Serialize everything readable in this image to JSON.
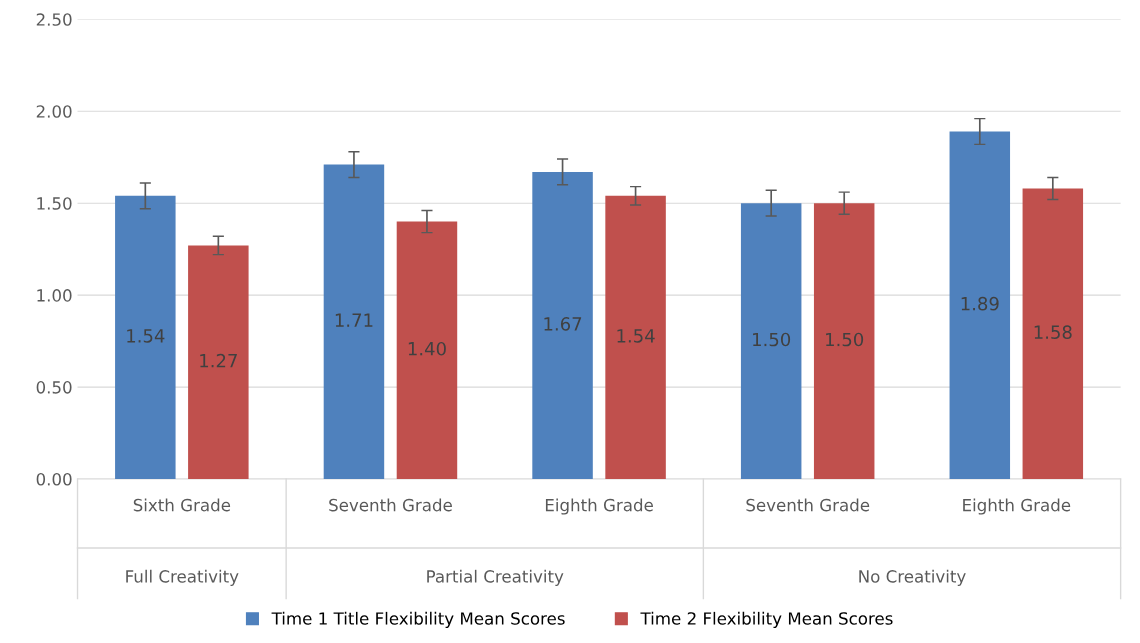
{
  "chart_data": {
    "type": "bar",
    "categories": [
      "Sixth Grade",
      "Seventh Grade",
      "Eighth Grade",
      "Seventh Grade",
      "Eighth Grade"
    ],
    "series": [
      {
        "name": "Time 1 Title Flexibility Mean Scores",
        "color": "#4f81bd",
        "values": [
          1.54,
          1.71,
          1.67,
          1.5,
          1.89
        ],
        "value_labels": [
          "1.54",
          "1.71",
          "1.67",
          "1.50",
          "1.89"
        ],
        "errors": [
          0.07,
          0.07,
          0.07,
          0.07,
          0.07
        ]
      },
      {
        "name": "Time 2 Flexibility Mean Scores",
        "color": "#c0504d",
        "values": [
          1.27,
          1.4,
          1.54,
          1.5,
          1.58
        ],
        "value_labels": [
          "1.27",
          "1.40",
          "1.54",
          "1.50",
          "1.58"
        ],
        "errors": [
          0.05,
          0.06,
          0.05,
          0.06,
          0.06
        ]
      }
    ],
    "annotations": [
      "Full Creativity",
      "Partial Creativity",
      "No Creativity"
    ],
    "ylim": [
      0,
      2.5
    ],
    "yticks": [
      {
        "value": 0,
        "label": "0.00"
      },
      {
        "value": 0.5,
        "label": "0.50"
      },
      {
        "value": 1,
        "label": "1.00"
      },
      {
        "value": 1.5,
        "label": "1.50"
      },
      {
        "value": 2,
        "label": "2.00"
      },
      {
        "value": 2.5,
        "label": "2.50"
      }
    ],
    "grid": "y",
    "legend": "bottom"
  }
}
